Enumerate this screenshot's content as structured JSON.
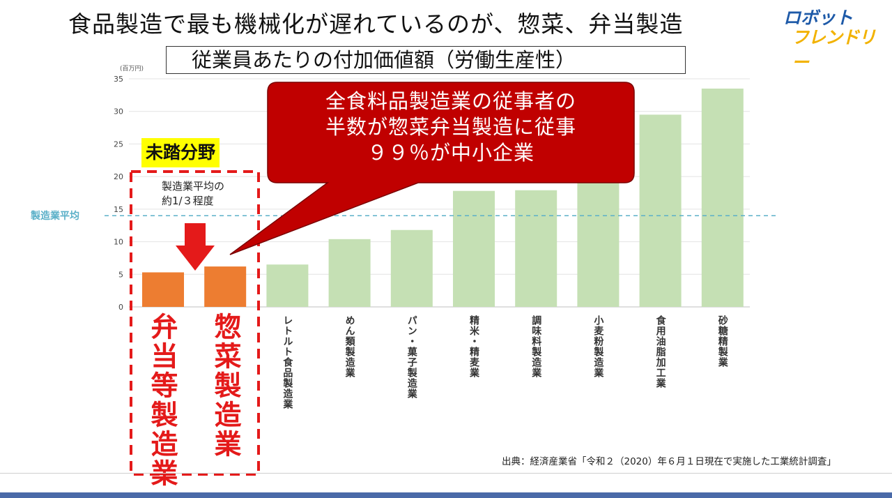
{
  "slide": {
    "title": "食品製造で最も機械化が遅れているのが、惣菜、弁当製造",
    "subtitle": "従業員あたりの付加価値額（労働生産性）",
    "logo": {
      "line1": "ロボット",
      "line2": "フレンドリー"
    },
    "callout_lines": [
      "全食料品製造業の従事者の",
      "半数が惣菜弁当製造に従事",
      "９９％が中小企業"
    ],
    "badge": "未踏分野",
    "note_lines": [
      "製造業平均の",
      "約1/３程度"
    ],
    "source": "出典：経済産業省「令和２（2020）年６月１日現在で実施した工業統計調査」",
    "highlight_labels": [
      "弁当等製造業",
      "惣菜製造業"
    ]
  },
  "chart_data": {
    "type": "bar",
    "unit": "(百万円)",
    "ylim": [
      0,
      35
    ],
    "yticks": [
      0,
      5,
      10,
      15,
      20,
      25,
      30,
      35
    ],
    "average_label": "製造業平均",
    "average": 14,
    "categories": [
      "弁当等製造業",
      "惣菜製造業",
      "レトルト食品製造業",
      "めん類製造業",
      "パン・菓子製造業",
      "精米・精麦業",
      "調味料製造業",
      "小麦粉製造業",
      "食用油脂加工業",
      "砂糖精製業"
    ],
    "values": [
      5.3,
      6.2,
      6.5,
      10.4,
      11.8,
      17.8,
      17.9,
      19.0,
      29.5,
      33.5
    ],
    "highlighted": [
      true,
      true,
      false,
      false,
      false,
      false,
      false,
      false,
      false,
      false
    ],
    "colors": {
      "highlight": "#ed7d31",
      "normal": "#c5e0b4",
      "average_line": "#5bb0c8",
      "callout": "#c00000",
      "dashed_box": "#e41a1a"
    }
  }
}
